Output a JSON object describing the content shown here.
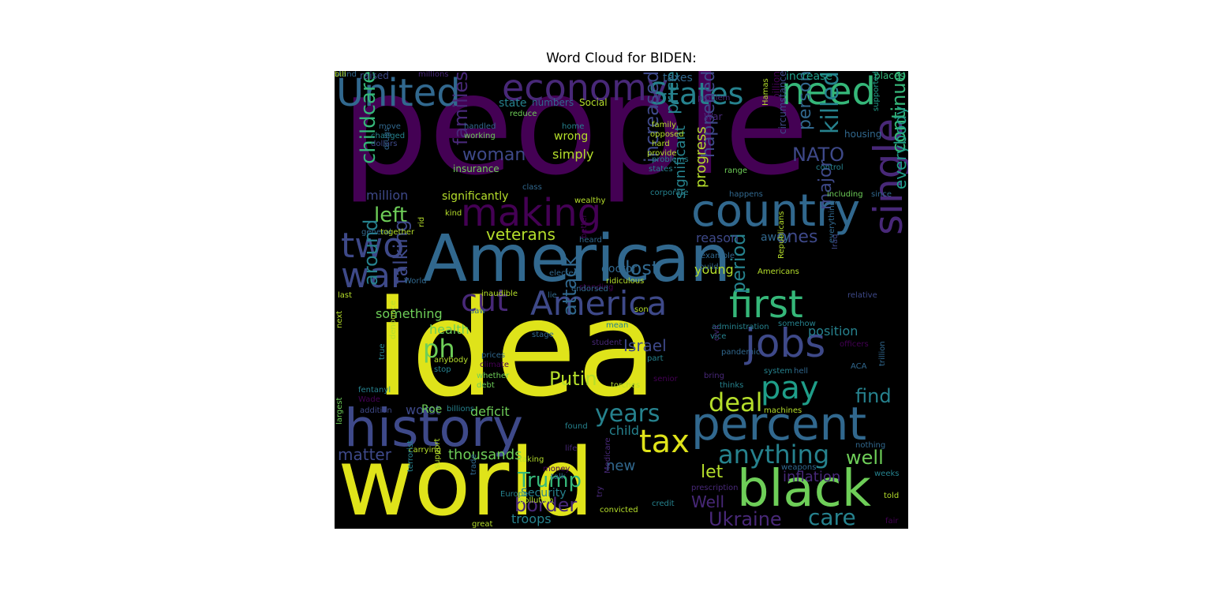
{
  "chart_data": {
    "type": "wordcloud",
    "title": "Word Cloud for BIDEN:",
    "palette": [
      "#440154",
      "#482878",
      "#3e4989",
      "#31688e",
      "#26828e",
      "#1f9e89",
      "#35b779",
      "#6ece58",
      "#b5de2b",
      "#fde725"
    ],
    "words": [
      {
        "text": "people",
        "color": "#440154"
      },
      {
        "text": "idea",
        "color": "#dfe31a"
      },
      {
        "text": "world",
        "color": "#dfe31a"
      },
      {
        "text": "American",
        "color": "#31688e"
      },
      {
        "text": "history",
        "color": "#3e4989"
      },
      {
        "text": "black",
        "color": "#6ece58"
      },
      {
        "text": "country",
        "color": "#31688e"
      },
      {
        "text": "percent",
        "color": "#31688e"
      },
      {
        "text": "economy",
        "color": "#482878"
      },
      {
        "text": "United",
        "color": "#31688e"
      },
      {
        "text": "need",
        "color": "#35b779"
      },
      {
        "text": "making",
        "color": "#440154"
      },
      {
        "text": "jobs",
        "color": "#3e4989"
      },
      {
        "text": "first",
        "color": "#35b779"
      },
      {
        "text": "single",
        "color": "#482878"
      },
      {
        "text": "America",
        "color": "#3e4989"
      },
      {
        "text": "pay",
        "color": "#1f9e89"
      },
      {
        "text": "two",
        "color": "#3e4989"
      },
      {
        "text": "war",
        "color": "#3e4989"
      },
      {
        "text": "cut",
        "color": "#482878"
      },
      {
        "text": "tax",
        "color": "#dfe31a"
      },
      {
        "text": "anything",
        "color": "#26828e"
      },
      {
        "text": "States",
        "color": "#26828e"
      },
      {
        "text": "childcare",
        "color": "#35b779"
      },
      {
        "text": "continue",
        "color": "#35b779"
      },
      {
        "text": "ph",
        "color": "#6ece58"
      },
      {
        "text": "deal",
        "color": "#b5de2b"
      },
      {
        "text": "years",
        "color": "#26828e"
      },
      {
        "text": "care",
        "color": "#26828e"
      },
      {
        "text": "Trump",
        "color": "#35b779"
      },
      {
        "text": "Ukraine",
        "color": "#482878"
      },
      {
        "text": "killed",
        "color": "#26828e"
      },
      {
        "text": "increased",
        "color": "#3e4989"
      },
      {
        "text": "families",
        "color": "#482878"
      },
      {
        "text": "left",
        "color": "#6ece58"
      },
      {
        "text": "NATO",
        "color": "#3e4989"
      },
      {
        "text": "woman",
        "color": "#3e4989"
      },
      {
        "text": "period",
        "color": "#26828e"
      },
      {
        "text": "talking",
        "color": "#3e4989"
      },
      {
        "text": "around",
        "color": "#26828e"
      },
      {
        "text": "veterans",
        "color": "#b5de2b"
      },
      {
        "text": "attack",
        "color": "#31688e"
      },
      {
        "text": "Putin",
        "color": "#b5de2b"
      },
      {
        "text": "lost",
        "color": "#31688e"
      },
      {
        "text": "Israel",
        "color": "#3e4989"
      },
      {
        "text": "find",
        "color": "#26828e"
      },
      {
        "text": "well",
        "color": "#6ece58"
      },
      {
        "text": "let",
        "color": "#b5de2b"
      },
      {
        "text": "border",
        "color": "#482878"
      },
      {
        "text": "matter",
        "color": "#3e4989"
      },
      {
        "text": "price",
        "color": "#26828e"
      },
      {
        "text": "happened",
        "color": "#3e4989"
      },
      {
        "text": "person",
        "color": "#31688e"
      },
      {
        "text": "everybody",
        "color": "#1f9e89"
      },
      {
        "text": "major",
        "color": "#3e4989"
      },
      {
        "text": "ones",
        "color": "#3e4989"
      },
      {
        "text": "progress",
        "color": "#b5de2b"
      },
      {
        "text": "significant",
        "color": "#26828e"
      },
      {
        "text": "thousands",
        "color": "#6ece58"
      },
      {
        "text": "inflation",
        "color": "#482878"
      },
      {
        "text": "Well",
        "color": "#482878"
      },
      {
        "text": "deficit",
        "color": "#6ece58"
      },
      {
        "text": "worst",
        "color": "#3e4989"
      },
      {
        "text": "child",
        "color": "#26828e"
      },
      {
        "text": "position",
        "color": "#26828e"
      },
      {
        "text": "million",
        "color": "#3e4989"
      },
      {
        "text": "simply",
        "color": "#b5de2b"
      },
      {
        "text": "wrong",
        "color": "#b5de2b"
      },
      {
        "text": "significantly",
        "color": "#b5de2b"
      },
      {
        "text": "insurance",
        "color": "#6ece58"
      },
      {
        "text": "health",
        "color": "#6ece58"
      },
      {
        "text": "something",
        "color": "#6ece58"
      },
      {
        "text": "troops",
        "color": "#26828e"
      },
      {
        "text": "new",
        "color": "#31688e"
      },
      {
        "text": "young",
        "color": "#b5de2b"
      },
      {
        "text": "doctor",
        "color": "#31688e"
      },
      {
        "text": "reason",
        "color": "#3e4989"
      },
      {
        "text": "away",
        "color": "#31688e"
      },
      {
        "text": "Roe",
        "color": "#6ece58"
      },
      {
        "text": "Security",
        "color": "#26828e"
      },
      {
        "text": "taxes",
        "color": "#31688e"
      },
      {
        "text": "increase",
        "color": "#1f9e89"
      },
      {
        "text": "places",
        "color": "#35b779"
      },
      {
        "text": "raised",
        "color": "#3e4989"
      },
      {
        "text": "millions",
        "color": "#482878"
      },
      {
        "text": "problem",
        "color": "#482878"
      },
      {
        "text": "billion",
        "color": "#440154"
      },
      {
        "text": "state",
        "color": "#26828e"
      },
      {
        "text": "numbers",
        "color": "#31688e"
      },
      {
        "text": "Social",
        "color": "#b5de2b"
      },
      {
        "text": "War",
        "color": "#482878"
      },
      {
        "text": "reduce",
        "color": "#6ece58"
      },
      {
        "text": "move",
        "color": "#31688e"
      },
      {
        "text": "changed",
        "color": "#26828e"
      },
      {
        "text": "handled",
        "color": "#31688e"
      },
      {
        "text": "working",
        "color": "#6ece58"
      },
      {
        "text": "home",
        "color": "#26828e"
      },
      {
        "text": "family",
        "color": "#b5de2b"
      },
      {
        "text": "opposed",
        "color": "#b5de2b"
      },
      {
        "text": "hard",
        "color": "#b5de2b"
      },
      {
        "text": "provide",
        "color": "#b5de2b"
      },
      {
        "text": "problems",
        "color": "#26828e"
      },
      {
        "text": "states",
        "color": "#26828e"
      },
      {
        "text": "Hamas",
        "color": "#b5de2b"
      },
      {
        "text": "circumstance",
        "color": "#3e4989"
      },
      {
        "text": "range",
        "color": "#6ece58"
      },
      {
        "text": "housing",
        "color": "#31688e"
      },
      {
        "text": "control",
        "color": "#26828e"
      },
      {
        "text": "supported",
        "color": "#1f9e89"
      },
      {
        "text": "dollars",
        "color": "#3e4989"
      },
      {
        "text": "drugs",
        "color": "#31688e"
      },
      {
        "text": "class",
        "color": "#31688e"
      },
      {
        "text": "wealthy",
        "color": "#b5de2b"
      },
      {
        "text": "corporate",
        "color": "#26828e"
      },
      {
        "text": "happens",
        "color": "#31688e"
      },
      {
        "text": "including",
        "color": "#6ece58"
      },
      {
        "text": "since",
        "color": "#31688e"
      },
      {
        "text": "kind",
        "color": "#b5de2b"
      },
      {
        "text": "general",
        "color": "#31688e"
      },
      {
        "text": "together",
        "color": "#b5de2b"
      },
      {
        "text": "rid",
        "color": "#b5de2b"
      },
      {
        "text": "heard",
        "color": "#31688e"
      },
      {
        "text": "better",
        "color": "#440154"
      },
      {
        "text": "example",
        "color": "#31688e"
      },
      {
        "text": "build",
        "color": "#31688e"
      },
      {
        "text": "everything",
        "color": "#31688e"
      },
      {
        "text": "Iraq",
        "color": "#3e4989"
      },
      {
        "text": "Republicans",
        "color": "#b5de2b"
      },
      {
        "text": "Americans",
        "color": "#b5de2b"
      },
      {
        "text": "relative",
        "color": "#3e4989"
      },
      {
        "text": "elected",
        "color": "#31688e"
      },
      {
        "text": "standing",
        "color": "#440154"
      },
      {
        "text": "ridiculous",
        "color": "#b5de2b"
      },
      {
        "text": "endorsed",
        "color": "#31688e"
      },
      {
        "text": "lie",
        "color": "#31688e"
      },
      {
        "text": "inaudible",
        "color": "#b5de2b"
      },
      {
        "text": "last",
        "color": "#b5de2b"
      },
      {
        "text": "World",
        "color": "#31688e"
      },
      {
        "text": "son",
        "color": "#b5de2b"
      },
      {
        "text": "saw",
        "color": "#31688e"
      },
      {
        "text": "mean",
        "color": "#26828e"
      },
      {
        "text": "stage",
        "color": "#31688e"
      },
      {
        "text": "student",
        "color": "#482878"
      },
      {
        "text": "administration",
        "color": "#26828e"
      },
      {
        "text": "vice",
        "color": "#26828e"
      },
      {
        "text": "somehow",
        "color": "#26828e"
      },
      {
        "text": "officers",
        "color": "#440154"
      },
      {
        "text": "pandemic",
        "color": "#31688e"
      },
      {
        "text": "prices",
        "color": "#31688e"
      },
      {
        "text": "climate",
        "color": "#440154"
      },
      {
        "text": "anybody",
        "color": "#b5de2b"
      },
      {
        "text": "stop",
        "color": "#26828e"
      },
      {
        "text": "part",
        "color": "#26828e"
      },
      {
        "text": "system",
        "color": "#26828e"
      },
      {
        "text": "hell",
        "color": "#31688e"
      },
      {
        "text": "ACA",
        "color": "#31688e"
      },
      {
        "text": "trillion",
        "color": "#31688e"
      },
      {
        "text": "next",
        "color": "#b5de2b"
      },
      {
        "text": "true",
        "color": "#26828e"
      },
      {
        "text": "denounce",
        "color": "#b5de2b"
      },
      {
        "text": "fentanyl",
        "color": "#26828e"
      },
      {
        "text": "Wade",
        "color": "#440154"
      },
      {
        "text": "whether",
        "color": "#6ece58"
      },
      {
        "text": "debt",
        "color": "#6ece58"
      },
      {
        "text": "senior",
        "color": "#440154"
      },
      {
        "text": "bring",
        "color": "#482878"
      },
      {
        "text": "thinks",
        "color": "#26828e"
      },
      {
        "text": "torches",
        "color": "#b5de2b"
      },
      {
        "text": "machines",
        "color": "#b5de2b"
      },
      {
        "text": "civil",
        "color": "#482878"
      },
      {
        "text": "largest",
        "color": "#6ece58"
      },
      {
        "text": "addition",
        "color": "#3e4989"
      },
      {
        "text": "billions",
        "color": "#26828e"
      },
      {
        "text": "found",
        "color": "#26828e"
      },
      {
        "text": "life",
        "color": "#482878"
      },
      {
        "text": "carrying",
        "color": "#b5de2b"
      },
      {
        "text": "taking",
        "color": "#b5de2b"
      },
      {
        "text": "money",
        "color": "#440154"
      },
      {
        "text": "talk",
        "color": "#31688e"
      },
      {
        "text": "nothing",
        "color": "#31688e"
      },
      {
        "text": "weapons",
        "color": "#31688e"
      },
      {
        "text": "weeks",
        "color": "#26828e"
      },
      {
        "text": "terrorist",
        "color": "#26828e"
      },
      {
        "text": "support",
        "color": "#b5de2b"
      },
      {
        "text": "trade",
        "color": "#31688e"
      },
      {
        "text": "Europe",
        "color": "#26828e"
      },
      {
        "text": "pollution",
        "color": "#b5de2b"
      },
      {
        "text": "try",
        "color": "#482878"
      },
      {
        "text": "Medicare",
        "color": "#482878"
      },
      {
        "text": "prescription",
        "color": "#482878"
      },
      {
        "text": "credit",
        "color": "#26828e"
      },
      {
        "text": "convicted",
        "color": "#b5de2b"
      },
      {
        "text": "told",
        "color": "#b5de2b"
      },
      {
        "text": "great",
        "color": "#b5de2b"
      },
      {
        "text": "fair",
        "color": "#440154"
      },
      {
        "text": "stand",
        "color": "#31688e"
      },
      {
        "text": "bill",
        "color": "#b5de2b"
      }
    ]
  }
}
